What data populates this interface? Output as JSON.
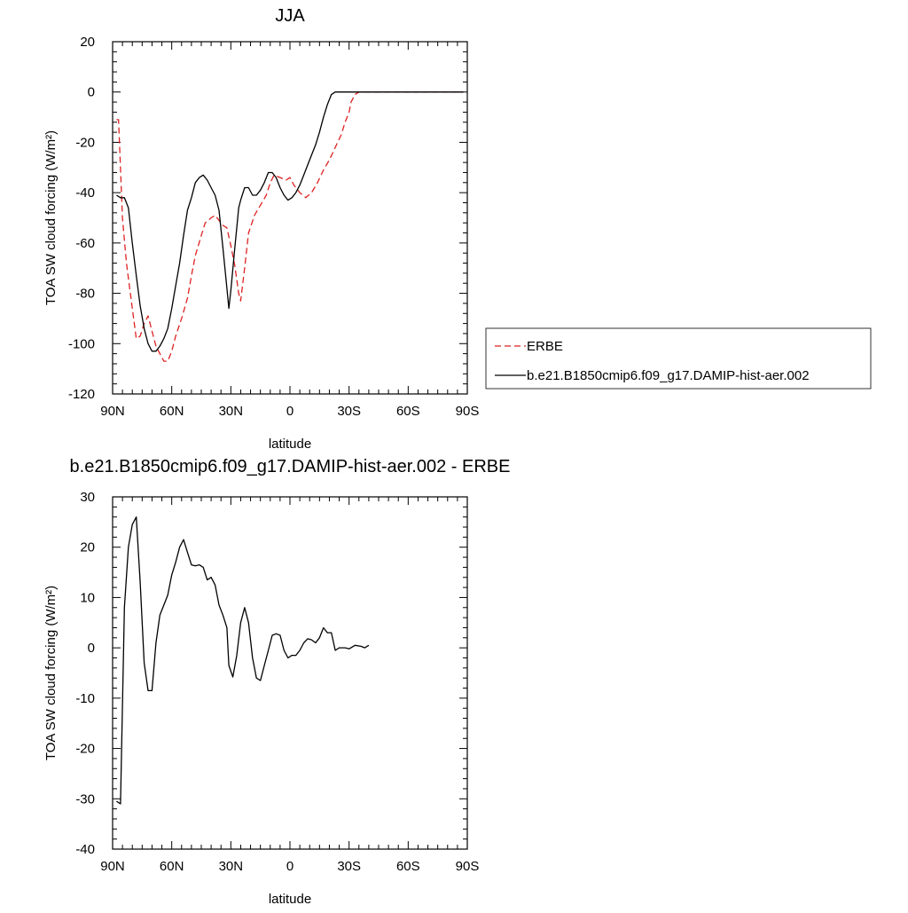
{
  "chart_data": [
    {
      "type": "line",
      "title": "JJA",
      "xlabel": "latitude",
      "ylabel": "TOA SW cloud forcing (W/m²)",
      "xlim": [
        90,
        -90
      ],
      "ylim": [
        -120,
        20
      ],
      "x_ticks": [
        {
          "value": 90,
          "label": "90N"
        },
        {
          "value": 60,
          "label": "60N"
        },
        {
          "value": 30,
          "label": "30N"
        },
        {
          "value": 0,
          "label": "0"
        },
        {
          "value": -30,
          "label": "30S"
        },
        {
          "value": -60,
          "label": "60S"
        },
        {
          "value": -90,
          "label": "90S"
        }
      ],
      "y_ticks": [
        20,
        0,
        -20,
        -40,
        -60,
        -80,
        -100,
        -120
      ],
      "legend_position": "right",
      "series": [
        {
          "name": "ERBE",
          "color": "#dd2222",
          "dash": "dashed",
          "points": [
            [
              88,
              -11
            ],
            [
              87,
              -11
            ],
            [
              85,
              -50
            ],
            [
              83,
              -68
            ],
            [
              80,
              -86
            ],
            [
              78,
              -98
            ],
            [
              76,
              -97
            ],
            [
              74,
              -92
            ],
            [
              72,
              -89
            ],
            [
              70,
              -95
            ],
            [
              68,
              -101
            ],
            [
              66,
              -104
            ],
            [
              64,
              -107
            ],
            [
              62,
              -107
            ],
            [
              60,
              -103
            ],
            [
              58,
              -97
            ],
            [
              55,
              -90
            ],
            [
              52,
              -82
            ],
            [
              50,
              -73
            ],
            [
              48,
              -65
            ],
            [
              45,
              -57
            ],
            [
              43,
              -52
            ],
            [
              40,
              -50
            ],
            [
              38,
              -49
            ],
            [
              36,
              -51
            ],
            [
              34,
              -53
            ],
            [
              32,
              -54
            ],
            [
              30,
              -61
            ],
            [
              28,
              -69
            ],
            [
              26,
              -80
            ],
            [
              25,
              -83
            ],
            [
              23,
              -70
            ],
            [
              21,
              -56
            ],
            [
              18,
              -49
            ],
            [
              15,
              -45
            ],
            [
              12,
              -41
            ],
            [
              10,
              -36
            ],
            [
              8,
              -33
            ],
            [
              5,
              -34
            ],
            [
              2,
              -35
            ],
            [
              0,
              -34
            ],
            [
              -2,
              -37
            ],
            [
              -5,
              -40
            ],
            [
              -8,
              -42
            ],
            [
              -11,
              -40
            ],
            [
              -14,
              -36
            ],
            [
              -17,
              -31
            ],
            [
              -20,
              -27
            ],
            [
              -23,
              -22
            ],
            [
              -26,
              -17
            ],
            [
              -28,
              -12
            ],
            [
              -30,
              -8
            ],
            [
              -31,
              -4
            ],
            [
              -33,
              -1
            ],
            [
              -35,
              0
            ],
            [
              -40,
              0
            ],
            [
              -45,
              0
            ],
            [
              -50,
              0
            ],
            [
              -55,
              0
            ],
            [
              -60,
              0
            ],
            [
              -65,
              0
            ],
            [
              -70,
              0
            ],
            [
              -75,
              0
            ],
            [
              -80,
              0
            ],
            [
              -85,
              0
            ],
            [
              -88,
              0
            ]
          ]
        },
        {
          "name": "b.e21.B1850cmip6.f09_g17.DAMIP-hist-aer.002",
          "color": "#000000",
          "dash": "solid",
          "points": [
            [
              88,
              -41
            ],
            [
              86,
              -42
            ],
            [
              84,
              -42
            ],
            [
              82,
              -46
            ],
            [
              80,
              -60
            ],
            [
              78,
              -73
            ],
            [
              76,
              -85
            ],
            [
              74,
              -94
            ],
            [
              72,
              -100
            ],
            [
              70,
              -103
            ],
            [
              68,
              -103
            ],
            [
              66,
              -101
            ],
            [
              64,
              -98
            ],
            [
              62,
              -94
            ],
            [
              60,
              -86
            ],
            [
              58,
              -77
            ],
            [
              56,
              -68
            ],
            [
              54,
              -57
            ],
            [
              52,
              -47
            ],
            [
              50,
              -42
            ],
            [
              48,
              -36
            ],
            [
              46,
              -34
            ],
            [
              44,
              -33
            ],
            [
              42,
              -35
            ],
            [
              40,
              -38
            ],
            [
              38,
              -41
            ],
            [
              36,
              -47
            ],
            [
              34,
              -62
            ],
            [
              32,
              -78
            ],
            [
              31,
              -86
            ],
            [
              30,
              -79
            ],
            [
              28,
              -62
            ],
            [
              26,
              -46
            ],
            [
              25,
              -43
            ],
            [
              23,
              -38
            ],
            [
              21,
              -38
            ],
            [
              19,
              -41
            ],
            [
              17,
              -41
            ],
            [
              15,
              -39
            ],
            [
              13,
              -36
            ],
            [
              11,
              -32
            ],
            [
              9,
              -32
            ],
            [
              7,
              -34
            ],
            [
              5,
              -38
            ],
            [
              3,
              -41
            ],
            [
              1,
              -43
            ],
            [
              -1,
              -42
            ],
            [
              -3,
              -40
            ],
            [
              -5,
              -37
            ],
            [
              -7,
              -33
            ],
            [
              -9,
              -29
            ],
            [
              -11,
              -25
            ],
            [
              -13,
              -21
            ],
            [
              -15,
              -16
            ],
            [
              -17,
              -10
            ],
            [
              -19,
              -5
            ],
            [
              -21,
              -1
            ],
            [
              -23,
              0
            ],
            [
              -25,
              0
            ],
            [
              -30,
              0
            ],
            [
              -35,
              0
            ],
            [
              -40,
              0
            ],
            [
              -45,
              0
            ],
            [
              -50,
              0
            ],
            [
              -55,
              0
            ],
            [
              -60,
              0
            ],
            [
              -65,
              0
            ],
            [
              -70,
              0
            ],
            [
              -75,
              0
            ],
            [
              -80,
              0
            ],
            [
              -85,
              0
            ],
            [
              -88,
              0
            ]
          ]
        }
      ]
    },
    {
      "type": "line",
      "title": "b.e21.B1850cmip6.f09_g17.DAMIP-hist-aer.002 - ERBE",
      "xlabel": "latitude",
      "ylabel": "TOA SW cloud forcing (W/m²)",
      "xlim": [
        90,
        -90
      ],
      "ylim": [
        -40,
        30
      ],
      "x_ticks": [
        {
          "value": 90,
          "label": "90N"
        },
        {
          "value": 60,
          "label": "60N"
        },
        {
          "value": 30,
          "label": "30N"
        },
        {
          "value": 0,
          "label": "0"
        },
        {
          "value": -30,
          "label": "30S"
        },
        {
          "value": -60,
          "label": "60S"
        },
        {
          "value": -90,
          "label": "90S"
        }
      ],
      "y_ticks": [
        30,
        20,
        10,
        0,
        -10,
        -20,
        -30,
        -40
      ],
      "series": [
        {
          "color": "#000000",
          "dash": "solid",
          "points": [
            [
              88,
              -30.5
            ],
            [
              86,
              -31
            ],
            [
              84,
              8
            ],
            [
              82,
              20
            ],
            [
              80,
              24.5
            ],
            [
              78,
              26
            ],
            [
              76,
              13
            ],
            [
              74,
              -3
            ],
            [
              72,
              -8.5
            ],
            [
              70,
              -8.5
            ],
            [
              68,
              1
            ],
            [
              66,
              6.5
            ],
            [
              64,
              8.5
            ],
            [
              62,
              10.5
            ],
            [
              60,
              14.5
            ],
            [
              58,
              17
            ],
            [
              56,
              20
            ],
            [
              54,
              21.5
            ],
            [
              52,
              19
            ],
            [
              50,
              16.5
            ],
            [
              48,
              16.3
            ],
            [
              46,
              16.5
            ],
            [
              44,
              16
            ],
            [
              42,
              13.5
            ],
            [
              40,
              14
            ],
            [
              38,
              12.5
            ],
            [
              36,
              8.5
            ],
            [
              34,
              6.5
            ],
            [
              32,
              4
            ],
            [
              31,
              -3.5
            ],
            [
              29,
              -5.8
            ],
            [
              27,
              -1.5
            ],
            [
              25,
              5
            ],
            [
              23,
              8
            ],
            [
              21,
              5
            ],
            [
              19,
              -2
            ],
            [
              17,
              -6
            ],
            [
              15,
              -6.5
            ],
            [
              13,
              -3.5
            ],
            [
              11,
              -0.5
            ],
            [
              9,
              2.5
            ],
            [
              7,
              2.8
            ],
            [
              5,
              2.5
            ],
            [
              3,
              -0.5
            ],
            [
              1,
              -2
            ],
            [
              -1,
              -1.5
            ],
            [
              -3,
              -1.5
            ],
            [
              -5,
              -0.5
            ],
            [
              -7,
              1
            ],
            [
              -9,
              1.8
            ],
            [
              -11,
              1.6
            ],
            [
              -13,
              1
            ],
            [
              -15,
              2
            ],
            [
              -17,
              4
            ],
            [
              -19,
              3
            ],
            [
              -21,
              3
            ],
            [
              -23,
              -0.5
            ],
            [
              -25,
              0
            ],
            [
              -28,
              0
            ],
            [
              -30,
              -0.2
            ],
            [
              -33,
              0.5
            ],
            [
              -36,
              0.3
            ],
            [
              -38,
              0
            ],
            [
              -40,
              0.5
            ]
          ]
        }
      ]
    }
  ]
}
